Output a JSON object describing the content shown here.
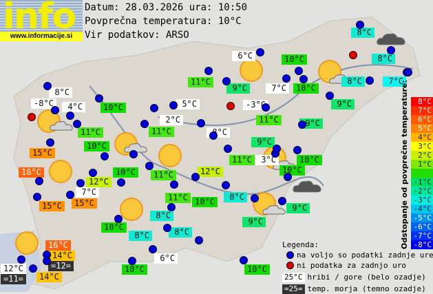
{
  "logo": {
    "word": "info",
    "url": "www.informacije.si"
  },
  "header": {
    "date_line": "Datum: 28.03.2026 ura: 10:50",
    "avg_line": "Povprečna temperatura: 10°C",
    "source_line": "Vir podatkov: ARSO"
  },
  "colors": {
    "white": "#ffffff",
    "dark": "#333333",
    "p2": "#c8ee00",
    "p1": "#44e611",
    "z": "#11dd00",
    "m1": "#11e46a",
    "m2": "#11ead0",
    "m3": "#11f4f4",
    "p4": "#ffc000",
    "p5": "#ff9200",
    "p6": "#ff6410"
  },
  "stations": [
    {
      "t": "8°C",
      "c": "m2"
    },
    {
      "t": "6°C",
      "c": "white"
    },
    {
      "t": "10°C",
      "c": "z"
    },
    {
      "t": "8°C",
      "c": "m2"
    },
    {
      "t": "11°C",
      "c": "p1"
    },
    {
      "t": "9°C",
      "c": "m1"
    },
    {
      "t": "7°C",
      "c": "white"
    },
    {
      "t": "10°C",
      "c": "z"
    },
    {
      "t": "8°C",
      "c": "m2"
    },
    {
      "t": "7°C",
      "c": "m3"
    },
    {
      "t": "8°C",
      "c": "white"
    },
    {
      "t": "-8°C",
      "c": "white"
    },
    {
      "t": "4°C",
      "c": "white"
    },
    {
      "t": "10°C",
      "c": "z"
    },
    {
      "t": "5°C",
      "c": "white"
    },
    {
      "t": "-3°C",
      "c": "white"
    },
    {
      "t": "9°C",
      "c": "m1"
    },
    {
      "t": "11°C",
      "c": "p1"
    },
    {
      "t": "9°C",
      "c": "m1"
    },
    {
      "t": "2°C",
      "c": "white"
    },
    {
      "t": "11°C",
      "c": "p1"
    },
    {
      "t": "11°C",
      "c": "p1"
    },
    {
      "t": "8°C",
      "c": "white"
    },
    {
      "t": "10°C",
      "c": "z"
    },
    {
      "t": "9°C",
      "c": "m1"
    },
    {
      "t": "15°C",
      "c": "p5"
    },
    {
      "t": "11°C",
      "c": "p1"
    },
    {
      "t": "3°C",
      "c": "white"
    },
    {
      "t": "10°C",
      "c": "z"
    },
    {
      "t": "10°C",
      "c": "z"
    },
    {
      "t": "16°C",
      "c": "p6"
    },
    {
      "t": "10°C",
      "c": "z"
    },
    {
      "t": "11°C",
      "c": "p1"
    },
    {
      "t": "12°C",
      "c": "p2"
    },
    {
      "t": "12°C",
      "c": "p2"
    },
    {
      "t": "7°C",
      "c": "white"
    },
    {
      "t": "8°C",
      "c": "m2"
    },
    {
      "t": "15°C",
      "c": "p5"
    },
    {
      "t": "15°C",
      "c": "p5"
    },
    {
      "t": "11°C",
      "c": "p1"
    },
    {
      "t": "10°C",
      "c": "z"
    },
    {
      "t": "9°C",
      "c": "m1"
    },
    {
      "t": "8°C",
      "c": "m2"
    },
    {
      "t": "10°C",
      "c": "z"
    },
    {
      "t": "9°C",
      "c": "m1"
    },
    {
      "t": "8°C",
      "c": "m2"
    },
    {
      "t": "8°C",
      "c": "m2"
    },
    {
      "t": "16°C",
      "c": "p6"
    },
    {
      "t": "14°C",
      "c": "p4"
    },
    {
      "t": "=12=",
      "c": "dark"
    },
    {
      "t": "6°C",
      "c": "white"
    },
    {
      "t": "12°C",
      "c": "white"
    },
    {
      "t": "14°C",
      "c": "p4"
    },
    {
      "t": "=11=",
      "c": "dark"
    },
    {
      "t": "10°C",
      "c": "z"
    },
    {
      "t": "10°C",
      "c": "z"
    }
  ],
  "scale": {
    "title": "Odstopanje od povprečne temperature:",
    "steps": [
      {
        "t": "8°C",
        "bg": "#ff0000",
        "fg": "#fff"
      },
      {
        "t": "7°C",
        "bg": "#ff2c00",
        "fg": "#fff"
      },
      {
        "t": "6°C",
        "bg": "#ff5800",
        "fg": "#fff"
      },
      {
        "t": "5°C",
        "bg": "#ff8200",
        "fg": "#fff"
      },
      {
        "t": "4°C",
        "bg": "#ffb400",
        "fg": "#222"
      },
      {
        "t": "3°C",
        "bg": "#ffff00",
        "fg": "#222"
      },
      {
        "t": "2°C",
        "bg": "#c8f000",
        "fg": "#222"
      },
      {
        "t": "1°C",
        "bg": "#80e800",
        "fg": "#222"
      },
      {
        "t": "",
        "bg": "#22dd00",
        "fg": "#222"
      },
      {
        "t": "-1°C",
        "bg": "#00e060",
        "fg": "#222"
      },
      {
        "t": "-2°C",
        "bg": "#00e8a0",
        "fg": "#222"
      },
      {
        "t": "-3°C",
        "bg": "#00f0e0",
        "fg": "#222"
      },
      {
        "t": "-4°C",
        "bg": "#00c8f0",
        "fg": "#222"
      },
      {
        "t": "-5°C",
        "bg": "#0090f0",
        "fg": "#fff"
      },
      {
        "t": "-6°C",
        "bg": "#0060f0",
        "fg": "#fff"
      },
      {
        "t": "-7°C",
        "bg": "#0030f0",
        "fg": "#fff"
      },
      {
        "t": "-8°C",
        "bg": "#0000f0",
        "fg": "#fff"
      }
    ]
  },
  "legend": {
    "title": "Legenda:",
    "blue_dot": "na voljo so podatki zadnje ure",
    "red_dot": "ni podatka za zadnjo uro",
    "white_sample": "25°C",
    "white_text": "hribi / gore (belo ozadje)",
    "dark_sample": "=25=",
    "dark_text": "temp. morja (temno ozadje)"
  }
}
